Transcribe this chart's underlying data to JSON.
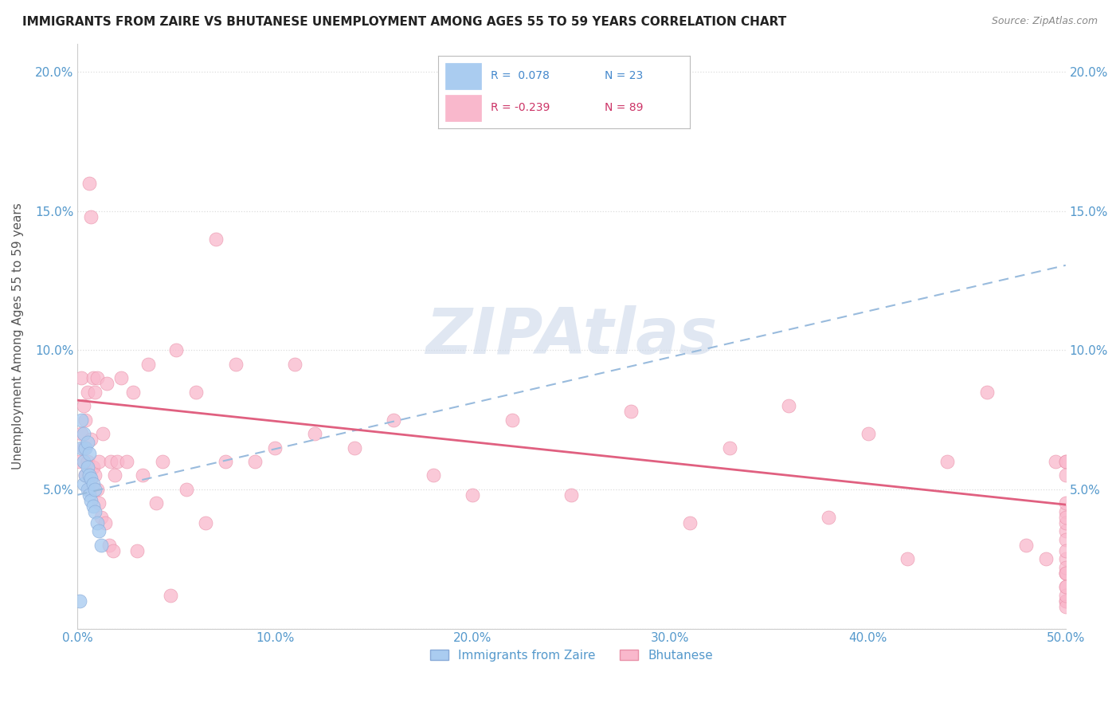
{
  "title": "IMMIGRANTS FROM ZAIRE VS BHUTANESE UNEMPLOYMENT AMONG AGES 55 TO 59 YEARS CORRELATION CHART",
  "source": "Source: ZipAtlas.com",
  "ylabel": "Unemployment Among Ages 55 to 59 years",
  "xlim": [
    0.0,
    0.5
  ],
  "ylim": [
    0.0,
    0.21
  ],
  "xticks": [
    0.0,
    0.1,
    0.2,
    0.3,
    0.4,
    0.5
  ],
  "xticklabels": [
    "0.0%",
    "10.0%",
    "20.0%",
    "30.0%",
    "40.0%",
    "50.0%"
  ],
  "yticks_left": [
    0.0,
    0.05,
    0.1,
    0.15,
    0.2
  ],
  "yticklabels_left": [
    "",
    "5.0%",
    "10.0%",
    "15.0%",
    "20.0%"
  ],
  "yticks_right": [
    0.0,
    0.05,
    0.1,
    0.15,
    0.2
  ],
  "yticklabels_right": [
    "",
    "5.0%",
    "10.0%",
    "15.0%",
    "20.0%"
  ],
  "legend_r1": "R =  0.078",
  "legend_n1": "N = 23",
  "legend_r2": "R = -0.239",
  "legend_n2": "N = 89",
  "color_zaire": "#aaccf0",
  "color_zaire_edge": "#88aad8",
  "color_bhutanese": "#f9b8cc",
  "color_bhutanese_edge": "#e890a8",
  "color_axis_ticks": "#5599cc",
  "color_title": "#222222",
  "color_source": "#888888",
  "watermark": "ZIPAtlas",
  "watermark_color": "#ccd8ea",
  "grid_color": "#dddddd",
  "zaire_trend_color": "#99bbdd",
  "bhutanese_trend_color": "#e06080",
  "zaire_intercept": 0.048,
  "zaire_slope": 0.165,
  "bhutanese_intercept": 0.082,
  "bhutanese_slope": -0.075,
  "zaire_x": [
    0.001,
    0.002,
    0.002,
    0.003,
    0.003,
    0.003,
    0.004,
    0.004,
    0.005,
    0.005,
    0.005,
    0.006,
    0.006,
    0.006,
    0.007,
    0.007,
    0.008,
    0.008,
    0.009,
    0.009,
    0.01,
    0.011,
    0.012
  ],
  "zaire_y": [
    0.01,
    0.065,
    0.075,
    0.052,
    0.06,
    0.07,
    0.055,
    0.065,
    0.05,
    0.058,
    0.067,
    0.048,
    0.055,
    0.063,
    0.046,
    0.054,
    0.044,
    0.052,
    0.042,
    0.05,
    0.038,
    0.035,
    0.03
  ],
  "bhutanese_x": [
    0.001,
    0.002,
    0.002,
    0.003,
    0.003,
    0.004,
    0.004,
    0.005,
    0.005,
    0.006,
    0.006,
    0.007,
    0.007,
    0.008,
    0.008,
    0.009,
    0.009,
    0.01,
    0.01,
    0.011,
    0.011,
    0.012,
    0.013,
    0.014,
    0.015,
    0.016,
    0.017,
    0.018,
    0.019,
    0.02,
    0.022,
    0.025,
    0.028,
    0.03,
    0.033,
    0.036,
    0.04,
    0.043,
    0.047,
    0.05,
    0.055,
    0.06,
    0.065,
    0.07,
    0.075,
    0.08,
    0.09,
    0.1,
    0.11,
    0.12,
    0.14,
    0.16,
    0.18,
    0.2,
    0.22,
    0.25,
    0.28,
    0.31,
    0.33,
    0.36,
    0.38,
    0.4,
    0.42,
    0.44,
    0.46,
    0.48,
    0.49,
    0.495,
    0.5,
    0.5,
    0.5,
    0.5,
    0.5,
    0.5,
    0.5,
    0.5,
    0.5,
    0.5,
    0.5,
    0.5,
    0.5,
    0.5,
    0.5,
    0.5,
    0.5,
    0.5,
    0.5,
    0.5,
    0.5
  ],
  "bhutanese_y": [
    0.06,
    0.07,
    0.09,
    0.065,
    0.08,
    0.055,
    0.075,
    0.06,
    0.085,
    0.16,
    0.05,
    0.068,
    0.148,
    0.058,
    0.09,
    0.055,
    0.085,
    0.05,
    0.09,
    0.045,
    0.06,
    0.04,
    0.07,
    0.038,
    0.088,
    0.03,
    0.06,
    0.028,
    0.055,
    0.06,
    0.09,
    0.06,
    0.085,
    0.028,
    0.055,
    0.095,
    0.045,
    0.06,
    0.012,
    0.1,
    0.05,
    0.085,
    0.038,
    0.14,
    0.06,
    0.095,
    0.06,
    0.065,
    0.095,
    0.07,
    0.065,
    0.075,
    0.055,
    0.048,
    0.075,
    0.048,
    0.078,
    0.038,
    0.065,
    0.08,
    0.04,
    0.07,
    0.025,
    0.06,
    0.085,
    0.03,
    0.025,
    0.06,
    0.02,
    0.042,
    0.01,
    0.06,
    0.035,
    0.025,
    0.02,
    0.038,
    0.06,
    0.01,
    0.015,
    0.04,
    0.055,
    0.008,
    0.022,
    0.032,
    0.02,
    0.045,
    0.012,
    0.028,
    0.015
  ]
}
